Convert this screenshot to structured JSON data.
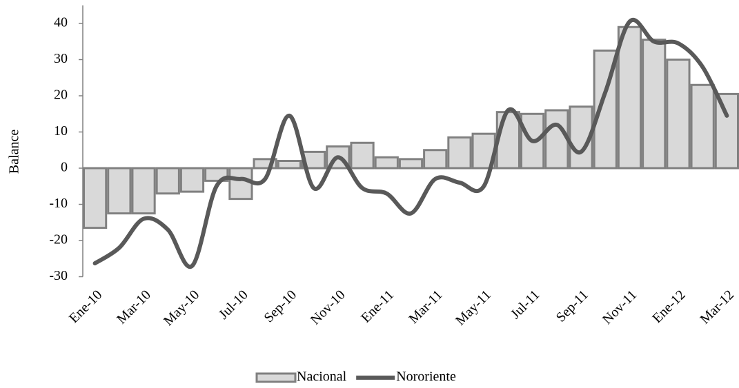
{
  "chart_data": {
    "type": "bar-line",
    "y_label": "Balance",
    "categories": [
      "Ene-10",
      null,
      "Mar-10",
      null,
      "May-10",
      null,
      "Jul-10",
      null,
      "Sep-10",
      null,
      "Nov-10",
      null,
      "Ene-11",
      null,
      "Mar-11",
      null,
      "May-11",
      null,
      "Jul-11",
      null,
      "Sep-11",
      null,
      "Nov-11",
      null,
      "Ene-12",
      null,
      "Mar-12"
    ],
    "series": [
      {
        "name": "Nacional",
        "kind": "bar",
        "color": "#d9d9d9",
        "edge": "#808080",
        "values": [
          -16.5,
          -12.5,
          -12.5,
          -7,
          -6.5,
          -3.5,
          -8.5,
          2.5,
          2,
          4.5,
          6,
          7,
          3,
          2.5,
          5,
          8.5,
          9.5,
          15.5,
          15,
          16,
          17,
          32.5,
          39,
          35.5,
          30,
          23,
          20.5
        ]
      },
      {
        "name": "Nororiente",
        "kind": "line",
        "color": "#595959",
        "values": [
          -26.3,
          -22,
          -14,
          -17,
          -27,
          -5,
          -3,
          -3,
          14.5,
          -5.5,
          3,
          -5.5,
          -7,
          -12.5,
          -3,
          -4,
          -5,
          16,
          7.5,
          12,
          4.5,
          21,
          40.5,
          35,
          34.5,
          28,
          14.5
        ]
      }
    ],
    "ylim": [
      -30,
      45
    ],
    "yticks": [
      -30,
      -20,
      -10,
      0,
      10,
      20,
      30,
      40
    ],
    "legend": "bottom"
  }
}
